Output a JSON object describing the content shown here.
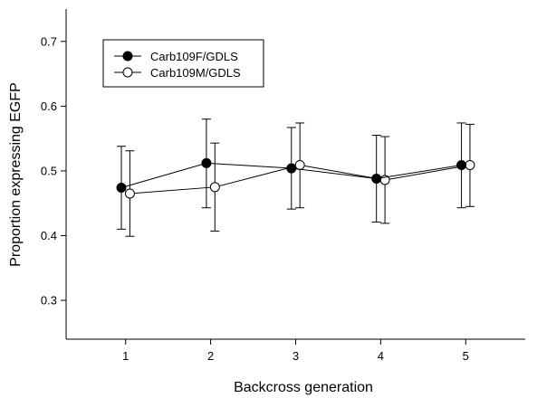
{
  "chart_data": {
    "type": "line",
    "title": "",
    "xlabel": "Backcross generation",
    "ylabel": "Proportion expressing EGFP",
    "x": [
      1,
      2,
      3,
      4,
      5
    ],
    "xticks": [
      "1",
      "2",
      "3",
      "4",
      "5"
    ],
    "xlim": [
      0.3,
      5.7
    ],
    "ylim": [
      0.24,
      0.75
    ],
    "yticks": [
      "0.3",
      "0.4",
      "0.5",
      "0.6",
      "0.7"
    ],
    "ytick_values": [
      0.3,
      0.4,
      0.5,
      0.6,
      0.7
    ],
    "grid": false,
    "legend_position": "top-left",
    "series": [
      {
        "name": "Carb109F/GDLS",
        "marker": "filled-circle",
        "color": "#000000",
        "x": [
          1,
          2,
          3,
          4,
          5
        ],
        "values": [
          0.474,
          0.512,
          0.504,
          0.488,
          0.509
        ],
        "upper": [
          0.538,
          0.58,
          0.567,
          0.555,
          0.574
        ],
        "lower": [
          0.41,
          0.443,
          0.441,
          0.421,
          0.443
        ]
      },
      {
        "name": "Carb109M/GDLS",
        "marker": "open-circle",
        "color": "#000000",
        "x": [
          1,
          2,
          3,
          4,
          5
        ],
        "values": [
          0.465,
          0.475,
          0.509,
          0.486,
          0.509
        ],
        "upper": [
          0.531,
          0.543,
          0.574,
          0.553,
          0.572
        ],
        "lower": [
          0.399,
          0.407,
          0.443,
          0.419,
          0.445
        ]
      }
    ]
  }
}
